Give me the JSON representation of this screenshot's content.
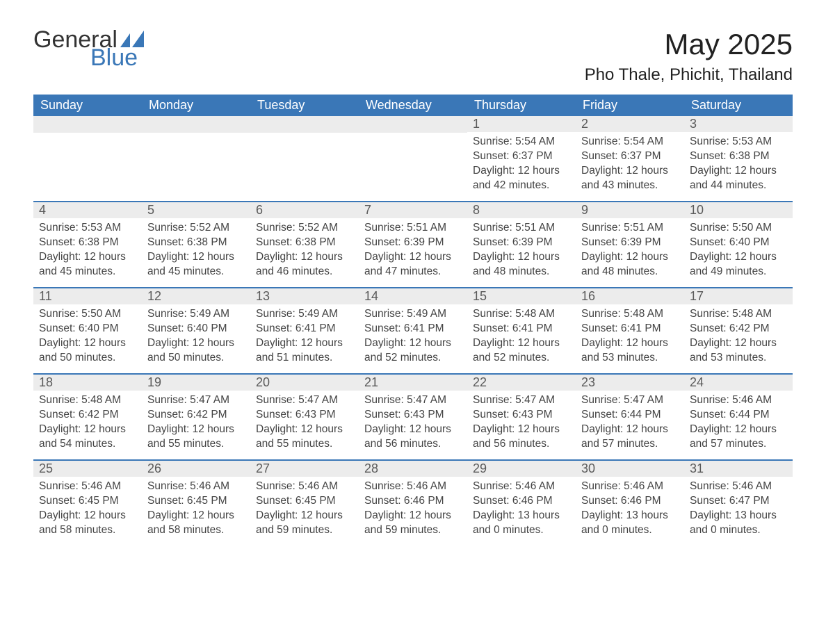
{
  "logo": {
    "general": "General",
    "blue": "Blue"
  },
  "title": "May 2025",
  "location": "Pho Thale, Phichit, Thailand",
  "colors": {
    "header_bg": "#3a77b7",
    "daynum_bg": "#ececec",
    "text": "#444444",
    "page_bg": "#ffffff"
  },
  "day_names": [
    "Sunday",
    "Monday",
    "Tuesday",
    "Wednesday",
    "Thursday",
    "Friday",
    "Saturday"
  ],
  "weeks": [
    [
      {
        "empty": true
      },
      {
        "empty": true
      },
      {
        "empty": true
      },
      {
        "empty": true
      },
      {
        "n": "1",
        "sunrise": "Sunrise: 5:54 AM",
        "sunset": "Sunset: 6:37 PM",
        "daylight": "Daylight: 12 hours and 42 minutes."
      },
      {
        "n": "2",
        "sunrise": "Sunrise: 5:54 AM",
        "sunset": "Sunset: 6:37 PM",
        "daylight": "Daylight: 12 hours and 43 minutes."
      },
      {
        "n": "3",
        "sunrise": "Sunrise: 5:53 AM",
        "sunset": "Sunset: 6:38 PM",
        "daylight": "Daylight: 12 hours and 44 minutes."
      }
    ],
    [
      {
        "n": "4",
        "sunrise": "Sunrise: 5:53 AM",
        "sunset": "Sunset: 6:38 PM",
        "daylight": "Daylight: 12 hours and 45 minutes."
      },
      {
        "n": "5",
        "sunrise": "Sunrise: 5:52 AM",
        "sunset": "Sunset: 6:38 PM",
        "daylight": "Daylight: 12 hours and 45 minutes."
      },
      {
        "n": "6",
        "sunrise": "Sunrise: 5:52 AM",
        "sunset": "Sunset: 6:38 PM",
        "daylight": "Daylight: 12 hours and 46 minutes."
      },
      {
        "n": "7",
        "sunrise": "Sunrise: 5:51 AM",
        "sunset": "Sunset: 6:39 PM",
        "daylight": "Daylight: 12 hours and 47 minutes."
      },
      {
        "n": "8",
        "sunrise": "Sunrise: 5:51 AM",
        "sunset": "Sunset: 6:39 PM",
        "daylight": "Daylight: 12 hours and 48 minutes."
      },
      {
        "n": "9",
        "sunrise": "Sunrise: 5:51 AM",
        "sunset": "Sunset: 6:39 PM",
        "daylight": "Daylight: 12 hours and 48 minutes."
      },
      {
        "n": "10",
        "sunrise": "Sunrise: 5:50 AM",
        "sunset": "Sunset: 6:40 PM",
        "daylight": "Daylight: 12 hours and 49 minutes."
      }
    ],
    [
      {
        "n": "11",
        "sunrise": "Sunrise: 5:50 AM",
        "sunset": "Sunset: 6:40 PM",
        "daylight": "Daylight: 12 hours and 50 minutes."
      },
      {
        "n": "12",
        "sunrise": "Sunrise: 5:49 AM",
        "sunset": "Sunset: 6:40 PM",
        "daylight": "Daylight: 12 hours and 50 minutes."
      },
      {
        "n": "13",
        "sunrise": "Sunrise: 5:49 AM",
        "sunset": "Sunset: 6:41 PM",
        "daylight": "Daylight: 12 hours and 51 minutes."
      },
      {
        "n": "14",
        "sunrise": "Sunrise: 5:49 AM",
        "sunset": "Sunset: 6:41 PM",
        "daylight": "Daylight: 12 hours and 52 minutes."
      },
      {
        "n": "15",
        "sunrise": "Sunrise: 5:48 AM",
        "sunset": "Sunset: 6:41 PM",
        "daylight": "Daylight: 12 hours and 52 minutes."
      },
      {
        "n": "16",
        "sunrise": "Sunrise: 5:48 AM",
        "sunset": "Sunset: 6:41 PM",
        "daylight": "Daylight: 12 hours and 53 minutes."
      },
      {
        "n": "17",
        "sunrise": "Sunrise: 5:48 AM",
        "sunset": "Sunset: 6:42 PM",
        "daylight": "Daylight: 12 hours and 53 minutes."
      }
    ],
    [
      {
        "n": "18",
        "sunrise": "Sunrise: 5:48 AM",
        "sunset": "Sunset: 6:42 PM",
        "daylight": "Daylight: 12 hours and 54 minutes."
      },
      {
        "n": "19",
        "sunrise": "Sunrise: 5:47 AM",
        "sunset": "Sunset: 6:42 PM",
        "daylight": "Daylight: 12 hours and 55 minutes."
      },
      {
        "n": "20",
        "sunrise": "Sunrise: 5:47 AM",
        "sunset": "Sunset: 6:43 PM",
        "daylight": "Daylight: 12 hours and 55 minutes."
      },
      {
        "n": "21",
        "sunrise": "Sunrise: 5:47 AM",
        "sunset": "Sunset: 6:43 PM",
        "daylight": "Daylight: 12 hours and 56 minutes."
      },
      {
        "n": "22",
        "sunrise": "Sunrise: 5:47 AM",
        "sunset": "Sunset: 6:43 PM",
        "daylight": "Daylight: 12 hours and 56 minutes."
      },
      {
        "n": "23",
        "sunrise": "Sunrise: 5:47 AM",
        "sunset": "Sunset: 6:44 PM",
        "daylight": "Daylight: 12 hours and 57 minutes."
      },
      {
        "n": "24",
        "sunrise": "Sunrise: 5:46 AM",
        "sunset": "Sunset: 6:44 PM",
        "daylight": "Daylight: 12 hours and 57 minutes."
      }
    ],
    [
      {
        "n": "25",
        "sunrise": "Sunrise: 5:46 AM",
        "sunset": "Sunset: 6:45 PM",
        "daylight": "Daylight: 12 hours and 58 minutes."
      },
      {
        "n": "26",
        "sunrise": "Sunrise: 5:46 AM",
        "sunset": "Sunset: 6:45 PM",
        "daylight": "Daylight: 12 hours and 58 minutes."
      },
      {
        "n": "27",
        "sunrise": "Sunrise: 5:46 AM",
        "sunset": "Sunset: 6:45 PM",
        "daylight": "Daylight: 12 hours and 59 minutes."
      },
      {
        "n": "28",
        "sunrise": "Sunrise: 5:46 AM",
        "sunset": "Sunset: 6:46 PM",
        "daylight": "Daylight: 12 hours and 59 minutes."
      },
      {
        "n": "29",
        "sunrise": "Sunrise: 5:46 AM",
        "sunset": "Sunset: 6:46 PM",
        "daylight": "Daylight: 13 hours and 0 minutes."
      },
      {
        "n": "30",
        "sunrise": "Sunrise: 5:46 AM",
        "sunset": "Sunset: 6:46 PM",
        "daylight": "Daylight: 13 hours and 0 minutes."
      },
      {
        "n": "31",
        "sunrise": "Sunrise: 5:46 AM",
        "sunset": "Sunset: 6:47 PM",
        "daylight": "Daylight: 13 hours and 0 minutes."
      }
    ]
  ]
}
